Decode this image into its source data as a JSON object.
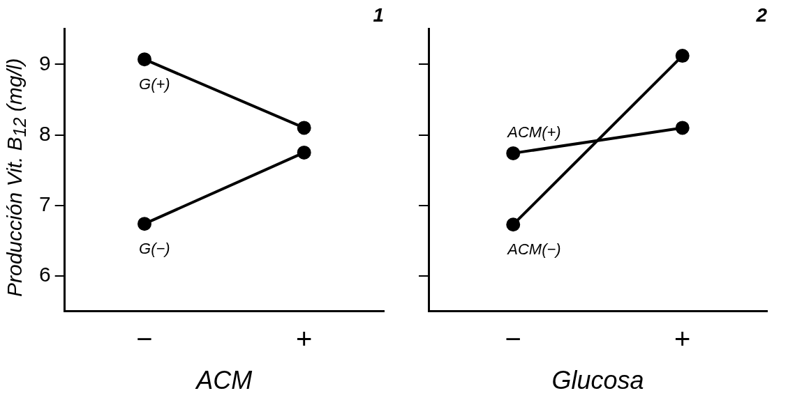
{
  "chart_data": [
    {
      "type": "line",
      "title": "1",
      "xlabel": "ACM",
      "ylabel": "Producción Vit. B$_{12}$ (mg/l)",
      "categories": [
        "−",
        "+"
      ],
      "series": [
        {
          "name": "G(+)",
          "color": "#000000",
          "values": [
            9.07,
            8.1
          ]
        },
        {
          "name": "G(−)",
          "color": "#000000",
          "values": [
            6.74,
            7.75
          ]
        }
      ],
      "ylim": [
        5.5,
        9.5
      ],
      "yticks": [
        6,
        7,
        8,
        9
      ],
      "marker": "circle",
      "grid": false,
      "legend": false
    },
    {
      "type": "line",
      "title": "2",
      "xlabel": "Glucosa",
      "categories": [
        "−",
        "+"
      ],
      "series": [
        {
          "name": "ACM(+)",
          "color": "#000000",
          "values": [
            7.74,
            8.1
          ]
        },
        {
          "name": "ACM(−)",
          "color": "#000000",
          "values": [
            6.73,
            9.12
          ]
        }
      ],
      "ylim": [
        5.5,
        9.5
      ],
      "yticks": [
        6,
        7,
        8,
        9
      ],
      "tick_labels": "x",
      "marker": "circle",
      "grid": false,
      "legend": false
    }
  ]
}
